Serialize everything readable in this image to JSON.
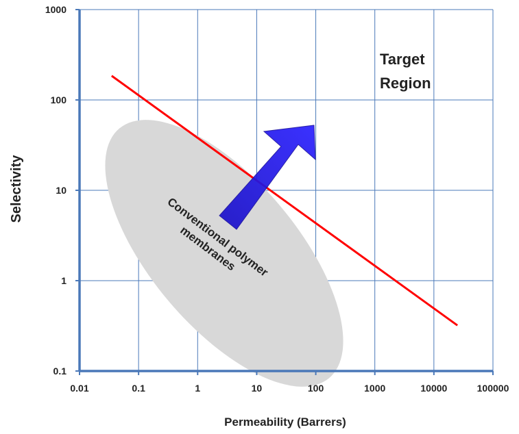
{
  "chart_data": {
    "type": "line",
    "title": "",
    "xlabel": "Permeability (Barrers)",
    "ylabel": "Selectivity",
    "x_scale": "log",
    "y_scale": "log",
    "xlim": [
      0.01,
      100000
    ],
    "ylim": [
      0.1,
      1000
    ],
    "x_ticks": [
      "0.01",
      "0.1",
      "1",
      "10",
      "100",
      "1000",
      "10000",
      "100000"
    ],
    "y_ticks": [
      "0.1",
      "1",
      "10",
      "100",
      "1000"
    ],
    "grid": true,
    "series": [
      {
        "x": [
          0.035,
          25000
        ],
        "y": [
          185,
          0.32
        ],
        "color": "#ff0000"
      }
    ],
    "annotations": {
      "target_region": [
        "Target",
        "Region"
      ],
      "conventional": [
        "Conventional polymer",
        "membranes"
      ]
    },
    "colors": {
      "grid": "#4a78b8",
      "axis": "#4a78b8",
      "arrow": "#1a10e0",
      "ellipse": "#d8d8d8",
      "line": "#ff0000"
    }
  }
}
